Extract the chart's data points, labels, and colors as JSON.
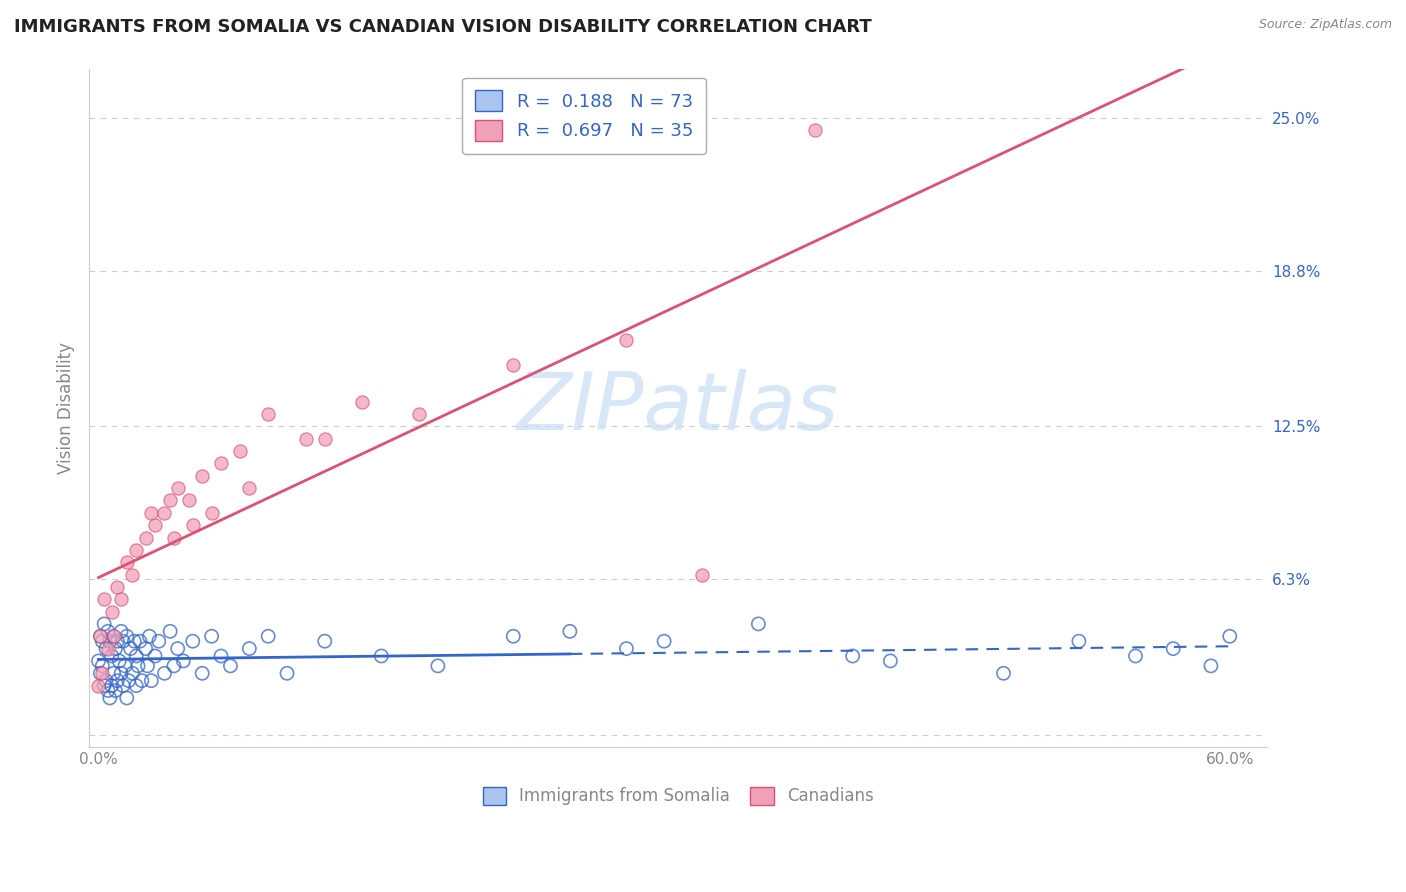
{
  "title": "IMMIGRANTS FROM SOMALIA VS CANADIAN VISION DISABILITY CORRELATION CHART",
  "source": "Source: ZipAtlas.com",
  "ylabel": "Vision Disability",
  "R_somalia": 0.188,
  "N_somalia": 73,
  "R_canada": 0.697,
  "N_canada": 35,
  "somalia_color": "#aac4f0",
  "canada_color": "#f0a0b8",
  "somalia_line_color": "#3366cc",
  "canada_line_color": "#e05070",
  "watermark_color": "#c8ddf5",
  "background_color": "#ffffff",
  "grid_color": "#cccccc",
  "title_color": "#222222",
  "axis_label_color": "#888888",
  "legend_text_color": "#3366cc",
  "legend_labels": [
    "Immigrants from Somalia",
    "Canadians"
  ],
  "xlim": [
    -0.005,
    0.62
  ],
  "ylim": [
    -0.005,
    0.27
  ],
  "somalia_x": [
    0.0,
    0.001,
    0.001,
    0.002,
    0.002,
    0.003,
    0.003,
    0.004,
    0.004,
    0.005,
    0.005,
    0.006,
    0.006,
    0.007,
    0.007,
    0.008,
    0.008,
    0.009,
    0.009,
    0.01,
    0.01,
    0.011,
    0.012,
    0.012,
    0.013,
    0.013,
    0.014,
    0.015,
    0.015,
    0.016,
    0.017,
    0.018,
    0.019,
    0.02,
    0.02,
    0.021,
    0.022,
    0.023,
    0.025,
    0.026,
    0.027,
    0.028,
    0.03,
    0.032,
    0.035,
    0.038,
    0.04,
    0.042,
    0.045,
    0.05,
    0.055,
    0.06,
    0.065,
    0.07,
    0.08,
    0.09,
    0.1,
    0.12,
    0.15,
    0.18,
    0.22,
    0.28,
    0.35,
    0.42,
    0.48,
    0.52,
    0.55,
    0.57,
    0.59,
    0.6,
    0.25,
    0.3,
    0.4
  ],
  "somalia_y": [
    0.03,
    0.025,
    0.04,
    0.028,
    0.038,
    0.02,
    0.045,
    0.022,
    0.035,
    0.018,
    0.042,
    0.015,
    0.038,
    0.02,
    0.032,
    0.025,
    0.04,
    0.018,
    0.035,
    0.022,
    0.038,
    0.03,
    0.025,
    0.042,
    0.02,
    0.038,
    0.028,
    0.015,
    0.04,
    0.022,
    0.035,
    0.025,
    0.038,
    0.02,
    0.032,
    0.028,
    0.038,
    0.022,
    0.035,
    0.028,
    0.04,
    0.022,
    0.032,
    0.038,
    0.025,
    0.042,
    0.028,
    0.035,
    0.03,
    0.038,
    0.025,
    0.04,
    0.032,
    0.028,
    0.035,
    0.04,
    0.025,
    0.038,
    0.032,
    0.028,
    0.04,
    0.035,
    0.045,
    0.03,
    0.025,
    0.038,
    0.032,
    0.035,
    0.028,
    0.04,
    0.042,
    0.038,
    0.032
  ],
  "canada_x": [
    0.0,
    0.001,
    0.002,
    0.003,
    0.005,
    0.007,
    0.008,
    0.01,
    0.012,
    0.015,
    0.018,
    0.02,
    0.025,
    0.028,
    0.03,
    0.035,
    0.038,
    0.042,
    0.048,
    0.055,
    0.065,
    0.075,
    0.09,
    0.11,
    0.14,
    0.17,
    0.22,
    0.28,
    0.32,
    0.04,
    0.05,
    0.06,
    0.08,
    0.12,
    0.38
  ],
  "canada_y": [
    0.02,
    0.04,
    0.025,
    0.055,
    0.035,
    0.05,
    0.04,
    0.06,
    0.055,
    0.07,
    0.065,
    0.075,
    0.08,
    0.09,
    0.085,
    0.09,
    0.095,
    0.1,
    0.095,
    0.105,
    0.11,
    0.115,
    0.13,
    0.12,
    0.135,
    0.13,
    0.15,
    0.16,
    0.065,
    0.08,
    0.085,
    0.09,
    0.1,
    0.12,
    0.245
  ]
}
